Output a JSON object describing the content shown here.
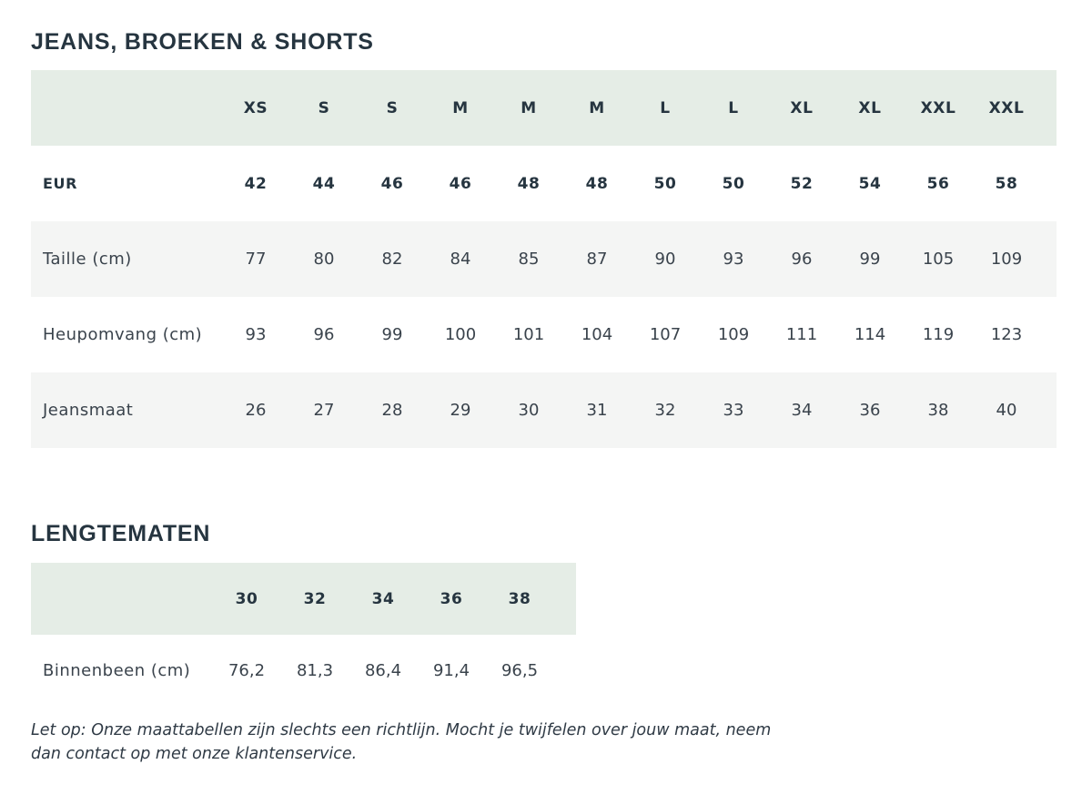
{
  "section1": {
    "title": "JEANS, BROEKEN & SHORTS",
    "sizes": [
      "XS",
      "S",
      "S",
      "M",
      "M",
      "M",
      "L",
      "L",
      "XL",
      "XL",
      "XXL",
      "XXL"
    ],
    "rows": [
      {
        "label": "EUR",
        "values": [
          "42",
          "44",
          "46",
          "46",
          "48",
          "48",
          "50",
          "50",
          "52",
          "54",
          "56",
          "58"
        ]
      },
      {
        "label": "Taille (cm)",
        "values": [
          "77",
          "80",
          "82",
          "84",
          "85",
          "87",
          "90",
          "93",
          "96",
          "99",
          "105",
          "109"
        ]
      },
      {
        "label": "Heupomvang (cm)",
        "values": [
          "93",
          "96",
          "99",
          "100",
          "101",
          "104",
          "107",
          "109",
          "111",
          "114",
          "119",
          "123"
        ]
      },
      {
        "label": "Jeansmaat",
        "values": [
          "26",
          "27",
          "28",
          "29",
          "30",
          "31",
          "32",
          "33",
          "34",
          "36",
          "38",
          "40"
        ]
      }
    ]
  },
  "section2": {
    "title": "LENGTEMATEN",
    "lengths": [
      "30",
      "32",
      "34",
      "36",
      "38"
    ],
    "rows": [
      {
        "label": "Binnenbeen (cm)",
        "values": [
          "76,2",
          "81,3",
          "86,4",
          "91,4",
          "96,5"
        ]
      }
    ]
  },
  "note": "Let op: Onze maattabellen zijn slechts een richtlijn. Mocht je twijfelen over jouw maat, neem dan contact op met onze klantenservice.",
  "colors": {
    "header_bg": "#e5ede6",
    "stripe_bg": "#f4f5f4",
    "text": "#2f3a45"
  }
}
